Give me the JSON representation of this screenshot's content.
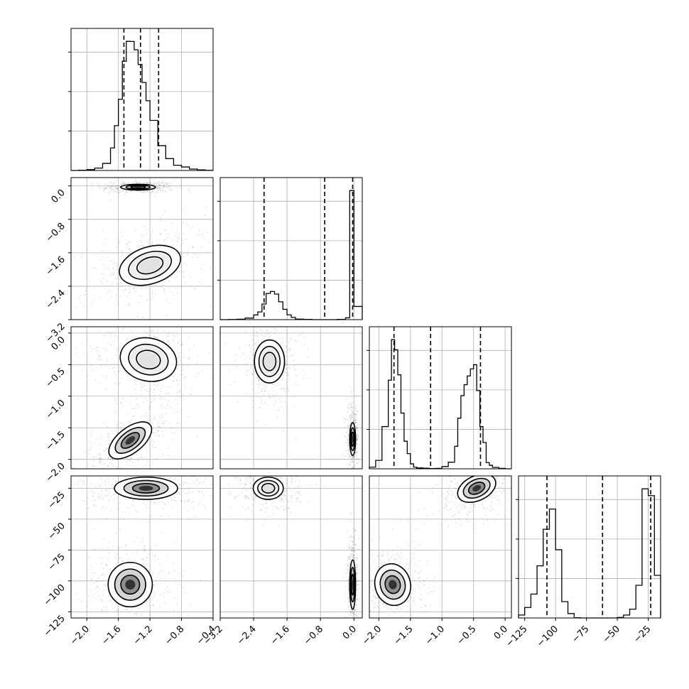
{
  "chart_data": {
    "type": "corner",
    "title": "",
    "grid": true,
    "variables": [
      {
        "name": "",
        "range": [
          -2.2,
          -0.4
        ],
        "ticks": [
          -2.0,
          -1.6,
          -1.2,
          -0.8,
          -0.4
        ],
        "tick_labels": [
          "−2.0",
          "−1.6",
          "−1.2",
          "−0.8",
          "−0.4"
        ],
        "quantiles": [
          -1.53,
          -1.32,
          -1.09
        ],
        "histogram": {
          "bin_edges": [
            -2.2,
            -2.1,
            -2.0,
            -1.9,
            -1.8,
            -1.7,
            -1.65,
            -1.6,
            -1.55,
            -1.5,
            -1.45,
            -1.4,
            -1.35,
            -1.3,
            -1.25,
            -1.2,
            -1.1,
            -1.0,
            -0.9,
            -0.8,
            -0.7,
            -0.6,
            -0.5,
            -0.4
          ],
          "counts": [
            0,
            2,
            6,
            17,
            50,
            160,
            318,
            505,
            775,
            916,
            915,
            856,
            752,
            624,
            495,
            355,
            176,
            84,
            37,
            25,
            10,
            4,
            1
          ]
        }
      },
      {
        "name": "",
        "range": [
          -3.2,
          0.2
        ],
        "ticks": [
          -3.2,
          -2.4,
          -1.6,
          -0.8,
          0.0
        ],
        "tick_labels": [
          "−3.2",
          "−2.4",
          "−1.6",
          "−0.8",
          "0.0"
        ],
        "quantiles": [
          -2.15,
          -0.7,
          -0.03
        ],
        "histogram": {
          "bin_edges": [
            -3.2,
            -3.0,
            -2.8,
            -2.6,
            -2.4,
            -2.3,
            -2.2,
            -2.1,
            -2.0,
            -1.9,
            -1.8,
            -1.7,
            -1.6,
            -1.5,
            -1.4,
            -1.2,
            -1.0,
            -0.8,
            -0.6,
            -0.4,
            -0.2,
            -0.1,
            0.0,
            0.2
          ],
          "counts": [
            0,
            1,
            3,
            12,
            36,
            60,
            121,
            203,
            218,
            198,
            138,
            80,
            37,
            18,
            4,
            2,
            0,
            0,
            0,
            2,
            14,
            1000,
            102
          ]
        }
      },
      {
        "name": "",
        "range": [
          -2.15,
          0.1
        ],
        "ticks": [
          -2.0,
          -1.5,
          -1.0,
          -0.5,
          0.0
        ],
        "tick_labels": [
          "−2.0",
          "−1.5",
          "−1.0",
          "−0.5",
          "0.0"
        ],
        "quantiles": [
          -1.76,
          -1.18,
          -0.39
        ],
        "histogram": {
          "bin_edges": [
            -2.15,
            -2.05,
            -1.95,
            -1.85,
            -1.8,
            -1.75,
            -1.7,
            -1.65,
            -1.6,
            -1.55,
            -1.5,
            -1.45,
            -1.4,
            -1.3,
            -1.2,
            -1.1,
            -1.0,
            -0.9,
            -0.8,
            -0.75,
            -0.7,
            -0.65,
            -0.6,
            -0.55,
            -0.5,
            -0.45,
            -0.4,
            -0.35,
            -0.3,
            -0.25,
            -0.2,
            -0.1,
            0.0,
            0.1
          ],
          "counts": [
            12,
            60,
            300,
            630,
            918,
            846,
            668,
            396,
            196,
            108,
            35,
            12,
            6,
            4,
            2,
            3,
            16,
            47,
            160,
            360,
            520,
            598,
            660,
            710,
            740,
            556,
            300,
            187,
            44,
            25,
            10,
            3,
            0
          ]
        }
      },
      {
        "name": "",
        "range": [
          -130,
          -15
        ],
        "ticks": [
          -125,
          -100,
          -75,
          -50,
          -25
        ],
        "tick_labels": [
          "−125",
          "−100",
          "−75",
          "−50",
          "−25"
        ],
        "quantiles": [
          -107,
          -62,
          -23
        ],
        "histogram": {
          "bin_edges": [
            -130,
            -125,
            -120,
            -115,
            -110,
            -105,
            -100,
            -95,
            -90,
            -85,
            -80,
            -75,
            -70,
            -65,
            -60,
            -55,
            -50,
            -45,
            -40,
            -35,
            -30,
            -25,
            -20,
            -15
          ],
          "counts": [
            12,
            43,
            98,
            214,
            364,
            447,
            280,
            67,
            18,
            1,
            0,
            0,
            0,
            0,
            0,
            0,
            2,
            12,
            36,
            134,
            530,
            502,
            175
          ]
        }
      }
    ],
    "pairs": [
      {
        "x": 0,
        "y": 1,
        "modes": [
          {
            "center": [
              -1.35,
              -0.03
            ],
            "spread": [
              0.11,
              0.035
            ],
            "rotation": 0,
            "weight": 0.5,
            "peak": "high"
          },
          {
            "center": [
              -1.2,
              -1.9
            ],
            "spread": [
              0.2,
              0.22
            ],
            "rotation": 18,
            "weight": 0.5,
            "peak": "low"
          }
        ]
      },
      {
        "x": 0,
        "y": 2,
        "modes": [
          {
            "center": [
              -1.22,
              -0.42
            ],
            "spread": [
              0.18,
              0.17
            ],
            "rotation": -12,
            "weight": 0.55,
            "peak": "low"
          },
          {
            "center": [
              -1.45,
              -1.7
            ],
            "spread": [
              0.16,
              0.1
            ],
            "rotation": 38,
            "weight": 0.45,
            "peak": "high"
          }
        ]
      },
      {
        "x": 0,
        "y": 3,
        "modes": [
          {
            "center": [
              -1.25,
              -25
            ],
            "spread": [
              0.2,
              4.5
            ],
            "rotation": 0,
            "weight": 0.5,
            "peak": "high"
          },
          {
            "center": [
              -1.45,
              -103
            ],
            "spread": [
              0.14,
              9
            ],
            "rotation": 0,
            "weight": 0.5,
            "peak": "high"
          }
        ]
      },
      {
        "x": 1,
        "y": 2,
        "modes": [
          {
            "center": [
              -2.02,
              -0.45
            ],
            "spread": [
              0.18,
              0.17
            ],
            "rotation": 0,
            "weight": 0.5,
            "peak": "low"
          },
          {
            "center": [
              -0.03,
              -1.68
            ],
            "spread": [
              0.035,
              0.13
            ],
            "rotation": 0,
            "weight": 0.5,
            "peak": "high"
          }
        ]
      },
      {
        "x": 1,
        "y": 3,
        "modes": [
          {
            "center": [
              -2.05,
              -25
            ],
            "spread": [
              0.18,
              4.5
            ],
            "rotation": 0,
            "weight": 0.5,
            "peak": "low"
          },
          {
            "center": [
              -0.03,
              -103
            ],
            "spread": [
              0.035,
              10
            ],
            "rotation": 0,
            "weight": 0.5,
            "peak": "high"
          }
        ]
      },
      {
        "x": 2,
        "y": 3,
        "modes": [
          {
            "center": [
              -0.45,
              -25
            ],
            "spread": [
              0.16,
              5
            ],
            "rotation": 25,
            "weight": 0.5,
            "peak": "high"
          },
          {
            "center": [
              -1.78,
              -103
            ],
            "spread": [
              0.14,
              8.5
            ],
            "rotation": 15,
            "weight": 0.5,
            "peak": "high"
          }
        ]
      }
    ]
  }
}
